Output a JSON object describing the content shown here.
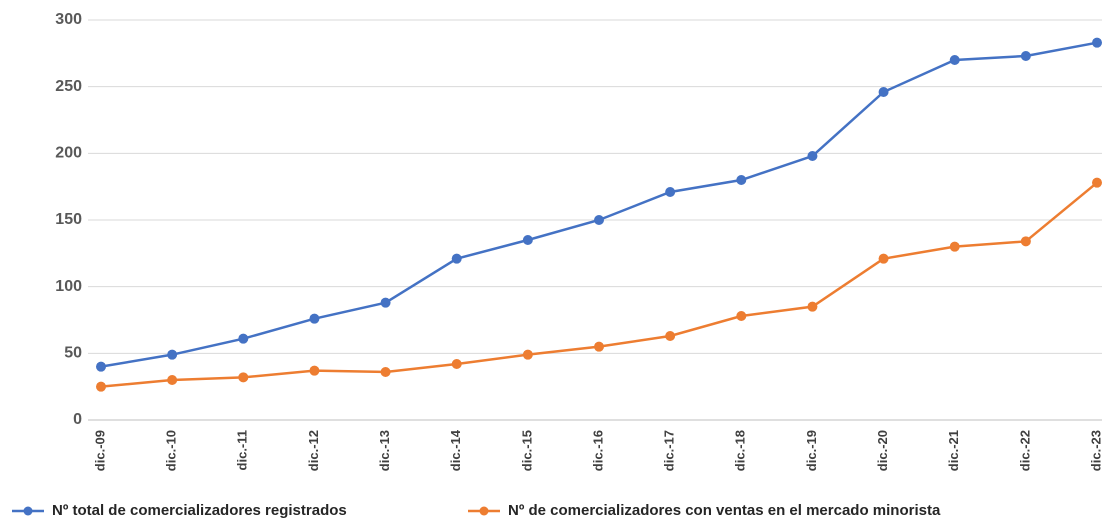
{
  "chart_data": {
    "type": "line",
    "categories": [
      "dic.-09",
      "dic.-10",
      "dic.-11",
      "dic.-12",
      "dic.-13",
      "dic.-14",
      "dic.-15",
      "dic.-16",
      "dic.-17",
      "dic.-18",
      "dic.-19",
      "dic.-20",
      "dic.-21",
      "dic.-22",
      "dic.-23"
    ],
    "series": [
      {
        "name": "Nº total de comercializadores registrados",
        "color": "#4472c4",
        "values": [
          40,
          49,
          61,
          76,
          88,
          121,
          135,
          150,
          171,
          180,
          198,
          246,
          270,
          273,
          283
        ]
      },
      {
        "name": "Nº de comercializadores con ventas en el mercado minorista",
        "color": "#ed7d31",
        "values": [
          25,
          30,
          32,
          37,
          36,
          42,
          49,
          55,
          63,
          78,
          85,
          121,
          130,
          134,
          178
        ]
      }
    ],
    "ylim": [
      0,
      300
    ],
    "yticks": [
      0,
      50,
      100,
      150,
      200,
      250,
      300
    ],
    "grid": true,
    "legend": "bottom"
  }
}
